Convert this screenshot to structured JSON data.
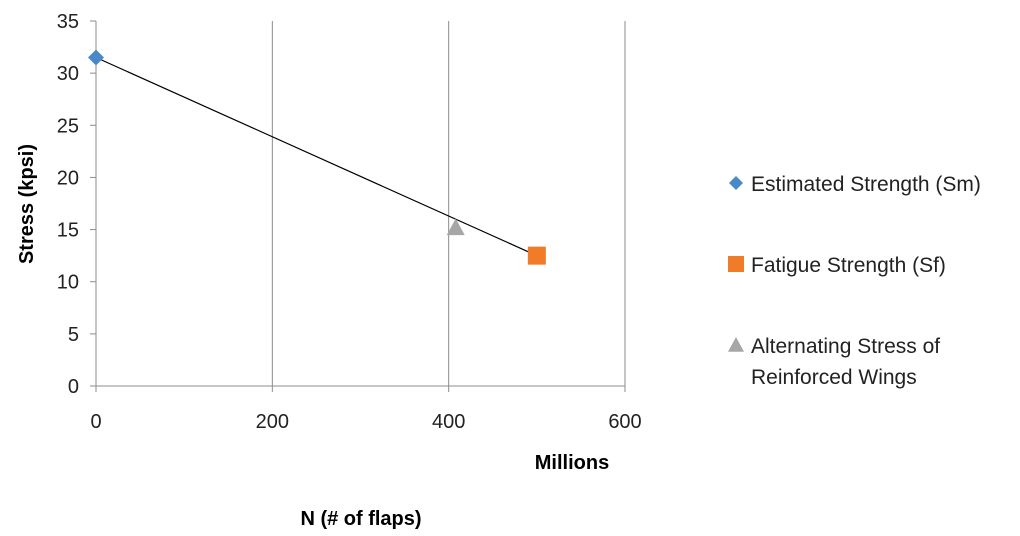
{
  "chart_data": {
    "type": "scatter",
    "title": "",
    "xlabel": "N (# of flaps)",
    "x_unit_label": "Millions",
    "ylabel": "Stress (kpsi)",
    "xlim": [
      0,
      600
    ],
    "ylim": [
      0,
      35
    ],
    "x_ticks": [
      0,
      200,
      400,
      600
    ],
    "y_ticks": [
      0,
      5,
      10,
      15,
      20,
      25,
      30,
      35
    ],
    "grid": {
      "vertical": true,
      "horizontal": false
    },
    "legend_position": "right",
    "series": [
      {
        "name": "Estimated Strength (Sm)",
        "marker": "diamond",
        "color": "#4A89C8",
        "points": [
          [
            0,
            31.5
          ]
        ]
      },
      {
        "name": "Fatigue Strength (Sf)",
        "marker": "square",
        "color": "#F07C2A",
        "points": [
          [
            500,
            12.5
          ]
        ]
      },
      {
        "name": "Alternating Stress of Reinforced Wings",
        "legend_lines": [
          "Alternating Stress of",
          "Reinforced Wings"
        ],
        "marker": "triangle",
        "color": "#A6A6A6",
        "points": [
          [
            408,
            15.2
          ]
        ]
      }
    ],
    "trendline": {
      "color": "#000000",
      "x": [
        0,
        500
      ],
      "y": [
        31.5,
        12.5
      ]
    }
  }
}
